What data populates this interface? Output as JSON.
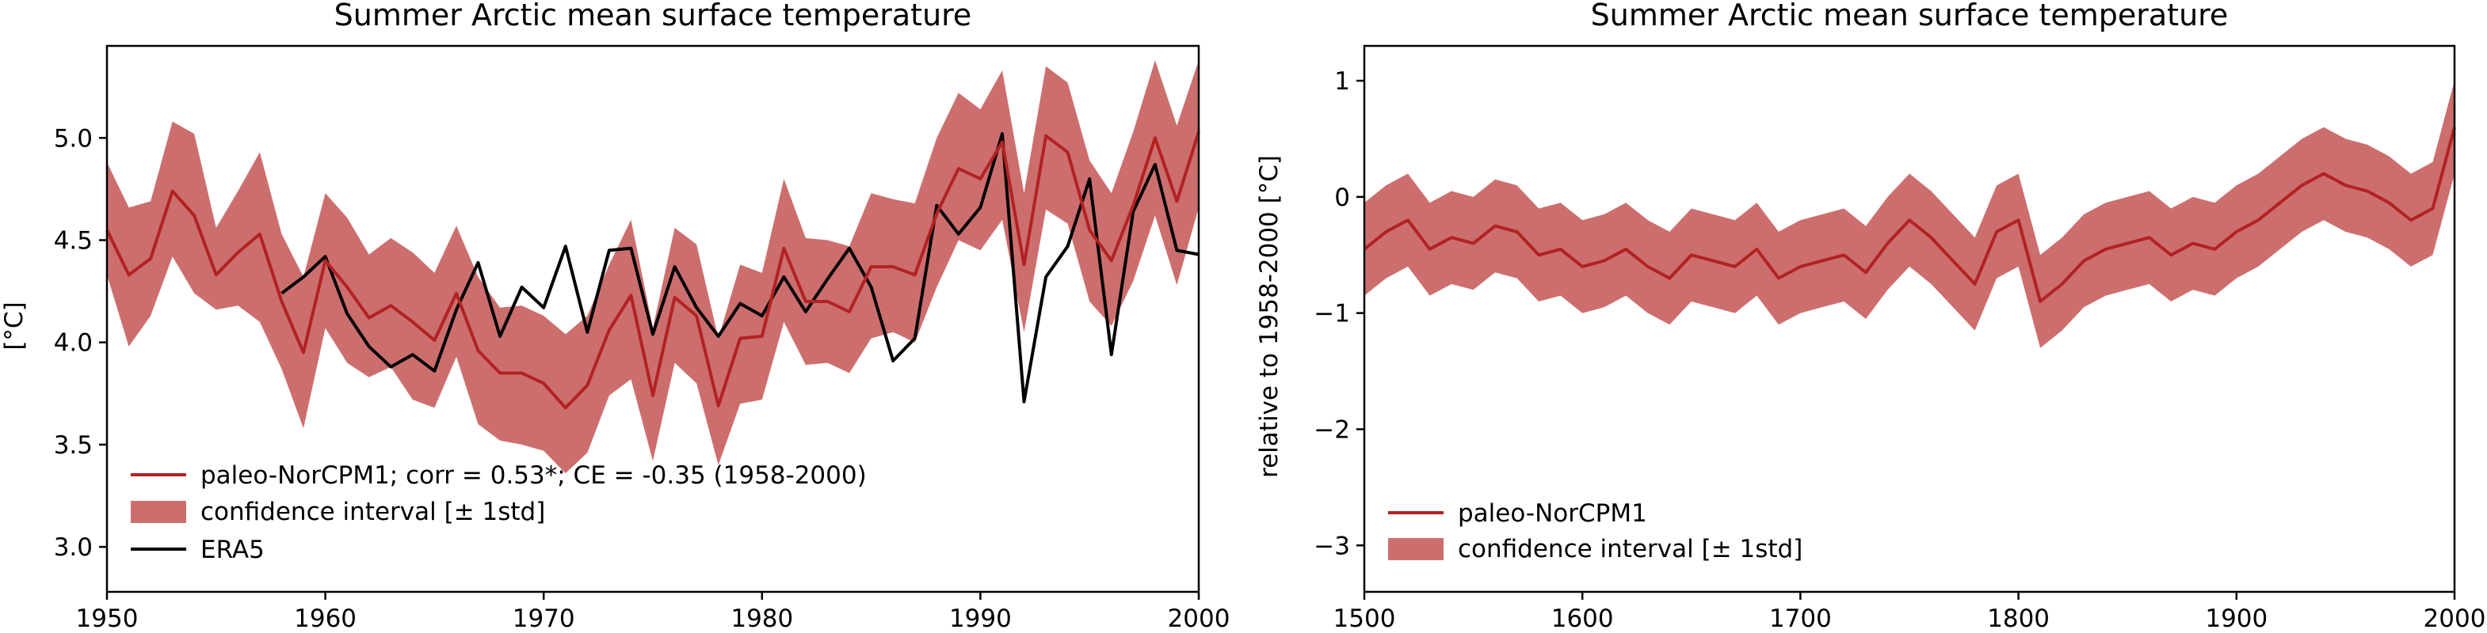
{
  "colors": {
    "recon": "#b22222",
    "band": "#cd6e6e",
    "era5": "#000000"
  },
  "chart_data": [
    {
      "type": "line",
      "title": "Summer Arctic mean surface temperature",
      "xlabel": "",
      "ylabel": "[°C]",
      "xlim": [
        1950,
        2000
      ],
      "ylim": [
        2.78,
        5.45
      ],
      "xticks": [
        1950,
        1960,
        1970,
        1980,
        1990,
        2000
      ],
      "yticks": [
        3.0,
        3.5,
        4.0,
        4.5,
        5.0
      ],
      "ytick_labels": [
        "3.0",
        "3.5",
        "4.0",
        "4.5",
        "5.0"
      ],
      "legend_position": "bottom-left",
      "legend": [
        "paleo-NorCPM1; corr = 0.53*; CE = -0.35 (1958-2000)",
        "confidence interval [± 1std]",
        "ERA5"
      ],
      "x": [
        1950,
        1951,
        1952,
        1953,
        1954,
        1955,
        1956,
        1957,
        1958,
        1959,
        1960,
        1961,
        1962,
        1963,
        1964,
        1965,
        1966,
        1967,
        1968,
        1969,
        1970,
        1971,
        1972,
        1973,
        1974,
        1975,
        1976,
        1977,
        1978,
        1979,
        1980,
        1981,
        1982,
        1983,
        1984,
        1985,
        1986,
        1987,
        1988,
        1989,
        1990,
        1991,
        1992,
        1993,
        1994,
        1995,
        1996,
        1997,
        1998,
        1999,
        2000
      ],
      "series": [
        {
          "name": "paleo-NorCPM1",
          "values": [
            4.55,
            4.33,
            4.41,
            4.74,
            4.62,
            4.33,
            4.44,
            4.53,
            4.2,
            3.95,
            4.4,
            4.27,
            4.12,
            4.18,
            4.1,
            4.01,
            4.24,
            3.96,
            3.85,
            3.85,
            3.8,
            3.68,
            3.79,
            4.06,
            4.23,
            3.74,
            4.22,
            4.13,
            3.69,
            4.02,
            4.03,
            4.46,
            4.2,
            4.2,
            4.15,
            4.37,
            4.37,
            4.33,
            4.63,
            4.85,
            4.8,
            4.98,
            4.38,
            5.01,
            4.93,
            4.55,
            4.4,
            4.67,
            5.0,
            4.69,
            5.03
          ]
        },
        {
          "name": "confidence interval [± 1std]",
          "lower": [
            4.33,
            3.98,
            4.13,
            4.42,
            4.24,
            4.16,
            4.18,
            4.1,
            3.87,
            3.58,
            4.07,
            3.9,
            3.83,
            3.88,
            3.72,
            3.68,
            3.93,
            3.6,
            3.52,
            3.5,
            3.47,
            3.36,
            3.46,
            3.74,
            3.82,
            3.42,
            3.9,
            3.8,
            3.4,
            3.7,
            3.72,
            4.1,
            3.89,
            3.9,
            3.85,
            4.02,
            4.05,
            4.0,
            4.27,
            4.5,
            4.45,
            4.6,
            4.05,
            4.65,
            4.58,
            4.2,
            4.08,
            4.3,
            4.62,
            4.28,
            4.66
          ],
          "upper": [
            4.88,
            4.66,
            4.69,
            5.08,
            5.02,
            4.56,
            4.74,
            4.93,
            4.53,
            4.32,
            4.73,
            4.61,
            4.43,
            4.51,
            4.44,
            4.34,
            4.57,
            4.32,
            4.17,
            4.18,
            4.13,
            4.04,
            4.13,
            4.38,
            4.6,
            4.07,
            4.56,
            4.48,
            4.02,
            4.38,
            4.34,
            4.8,
            4.51,
            4.5,
            4.47,
            4.73,
            4.7,
            4.68,
            5.0,
            5.22,
            5.14,
            5.33,
            4.73,
            5.35,
            5.27,
            4.89,
            4.73,
            5.03,
            5.38,
            5.06,
            5.38
          ]
        },
        {
          "name": "ERA5",
          "x": [
            1958,
            1959,
            1960,
            1961,
            1962,
            1963,
            1964,
            1965,
            1966,
            1967,
            1968,
            1969,
            1970,
            1971,
            1972,
            1973,
            1974,
            1975,
            1976,
            1977,
            1978,
            1979,
            1980,
            1981,
            1982,
            1983,
            1984,
            1985,
            1986,
            1987,
            1988,
            1989,
            1990,
            1991,
            1992,
            1993,
            1994,
            1995,
            1996,
            1997,
            1998,
            1999,
            2000
          ],
          "values": [
            4.24,
            4.32,
            4.42,
            4.14,
            3.98,
            3.88,
            3.94,
            3.86,
            4.16,
            4.39,
            4.03,
            4.27,
            4.17,
            4.47,
            4.05,
            4.45,
            4.46,
            4.04,
            4.37,
            4.17,
            4.03,
            4.19,
            4.13,
            4.32,
            4.15,
            4.31,
            4.46,
            4.27,
            3.91,
            4.02,
            4.67,
            4.53,
            4.66,
            5.02,
            3.71,
            4.32,
            4.47,
            4.8,
            3.94,
            4.64,
            4.87,
            4.45,
            4.43
          ]
        }
      ]
    },
    {
      "type": "line",
      "title": "Summer Arctic mean surface temperature",
      "xlabel": "",
      "ylabel": "relative to 1958-2000 [°C]",
      "xlim": [
        1500,
        2000
      ],
      "ylim": [
        -3.4,
        1.3
      ],
      "xticks": [
        1500,
        1600,
        1700,
        1800,
        1900,
        2000
      ],
      "yticks": [
        1,
        0,
        -1,
        -2,
        -3
      ],
      "ytick_labels": [
        "1",
        "0",
        "−1",
        "−2",
        "−3"
      ],
      "legend_position": "bottom-left",
      "legend": [
        "paleo-NorCPM1",
        "confidence interval [± 1std]"
      ],
      "x": [
        1500,
        1510,
        1520,
        1530,
        1540,
        1550,
        1560,
        1570,
        1580,
        1590,
        1600,
        1610,
        1620,
        1630,
        1640,
        1650,
        1660,
        1670,
        1680,
        1690,
        1700,
        1710,
        1720,
        1730,
        1740,
        1750,
        1760,
        1770,
        1780,
        1790,
        1800,
        1810,
        1820,
        1830,
        1840,
        1850,
        1860,
        1870,
        1880,
        1890,
        1900,
        1910,
        1920,
        1930,
        1940,
        1950,
        1960,
        1970,
        1980,
        1990,
        2000
      ],
      "series": [
        {
          "name": "paleo-NorCPM1",
          "values": [
            -0.45,
            -0.3,
            -0.2,
            -0.45,
            -0.35,
            -0.4,
            -0.25,
            -0.3,
            -0.5,
            -0.45,
            -0.6,
            -0.55,
            -0.45,
            -0.6,
            -0.7,
            -0.5,
            -0.55,
            -0.6,
            -0.45,
            -0.7,
            -0.6,
            -0.55,
            -0.5,
            -0.65,
            -0.4,
            -0.2,
            -0.35,
            -0.55,
            -0.75,
            -0.3,
            -0.2,
            -0.9,
            -0.75,
            -0.55,
            -0.45,
            -0.4,
            -0.35,
            -0.5,
            -0.4,
            -0.45,
            -0.3,
            -0.2,
            -0.05,
            0.1,
            0.2,
            0.1,
            0.05,
            -0.05,
            -0.2,
            -0.1,
            0.6
          ]
        },
        {
          "name": "confidence interval [± 1std]",
          "lower": [
            -0.85,
            -0.7,
            -0.6,
            -0.85,
            -0.75,
            -0.8,
            -0.65,
            -0.7,
            -0.9,
            -0.85,
            -1.0,
            -0.95,
            -0.85,
            -1.0,
            -1.1,
            -0.9,
            -0.95,
            -1.0,
            -0.85,
            -1.1,
            -1.0,
            -0.95,
            -0.9,
            -1.05,
            -0.8,
            -0.6,
            -0.75,
            -0.95,
            -1.15,
            -0.7,
            -0.6,
            -1.3,
            -1.15,
            -0.95,
            -0.85,
            -0.8,
            -0.75,
            -0.9,
            -0.8,
            -0.85,
            -0.7,
            -0.6,
            -0.45,
            -0.3,
            -0.2,
            -0.3,
            -0.35,
            -0.45,
            -0.6,
            -0.5,
            0.2
          ],
          "upper": [
            -0.05,
            0.1,
            0.2,
            -0.05,
            0.05,
            0.0,
            0.15,
            0.1,
            -0.1,
            -0.05,
            -0.2,
            -0.15,
            -0.05,
            -0.2,
            -0.3,
            -0.1,
            -0.15,
            -0.2,
            -0.05,
            -0.3,
            -0.2,
            -0.15,
            -0.1,
            -0.25,
            0.0,
            0.2,
            0.05,
            -0.15,
            -0.35,
            0.1,
            0.2,
            -0.5,
            -0.35,
            -0.15,
            -0.05,
            0.0,
            0.05,
            -0.1,
            0.0,
            -0.05,
            0.1,
            0.2,
            0.35,
            0.5,
            0.6,
            0.5,
            0.45,
            0.35,
            0.2,
            0.3,
            1.0
          ]
        }
      ]
    }
  ]
}
